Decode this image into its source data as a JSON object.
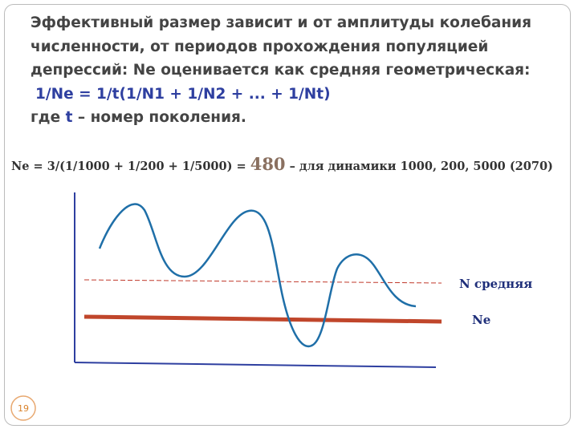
{
  "text": {
    "lines": [
      "Эффективный размер зависит и от амплитуды колебания",
      "численности, от периодов прохождения популяцией",
      "депрессий: Ne оценивается как средняя геометрическая:"
    ],
    "formula": "1/Ne = 1/t(1/N1 + 1/N2 + ... + 1/Nt)",
    "last_line": {
      "before": "где ",
      "t": "t",
      "after": " – номер поколения."
    }
  },
  "equation": {
    "left": "Ne = 3/(1/1000 + 1/200 + 1/5000) = ",
    "result": "480",
    "right": " – для динамики 1000, 200, 5000 (2070)"
  },
  "labels": {
    "mean": "N средняя",
    "ne": "Ne"
  },
  "page_number": "19"
}
